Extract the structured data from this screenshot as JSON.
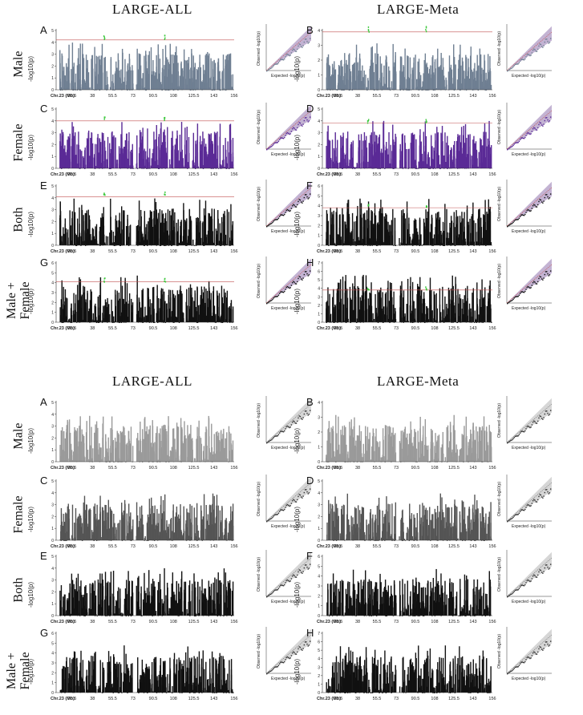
{
  "figure": {
    "column_titles": [
      "LARGE-ALL",
      "LARGE-Meta"
    ],
    "row_labels": [
      [
        "Male"
      ],
      [
        "Female"
      ],
      [
        "Both"
      ],
      [
        "Male +",
        "Female"
      ]
    ],
    "panel_letters": [
      "A",
      "B",
      "C",
      "D",
      "E",
      "F",
      "G",
      "H"
    ],
    "manhattan_ylabel": "-log10(p)",
    "qq_xlabel": "Expected -log10(p)",
    "qq_ylabel": "Observed -log10(p)",
    "x_ticks": [
      "Chr.23 (Mb)",
      "20.5",
      "38",
      "55.5",
      "73",
      "90.5",
      "108",
      "125.5",
      "143",
      "156"
    ],
    "colors": {
      "male": "#6f7f92",
      "female": "#5a2a96",
      "both": "#111111",
      "highlight": "#3ec83e",
      "threshold": "#c25050",
      "qq_band": "#b4a0c8",
      "gray_male": "#9a9a9a",
      "gray_female": "#555555"
    }
  },
  "chart_data": [
    {
      "type": "scatter",
      "panel": "A",
      "set": "color",
      "title": "",
      "series": [
        {
          "name": "Male",
          "group": "LARGE-ALL"
        }
      ],
      "ylim": [
        0,
        5
      ],
      "threshold": 4.2
    },
    {
      "type": "scatter",
      "panel": "B",
      "set": "color",
      "series": [
        {
          "name": "Male",
          "group": "LARGE-Meta"
        }
      ],
      "ylim": [
        0,
        4
      ],
      "threshold": 3.9
    },
    {
      "type": "scatter",
      "panel": "C",
      "set": "color",
      "series": [
        {
          "name": "Female",
          "group": "LARGE-ALL"
        }
      ],
      "ylim": [
        0,
        5
      ],
      "threshold": 4.0
    },
    {
      "type": "scatter",
      "panel": "D",
      "set": "color",
      "series": [
        {
          "name": "Female",
          "group": "LARGE-Meta"
        }
      ],
      "ylim": [
        0,
        5
      ],
      "threshold": 3.8
    },
    {
      "type": "scatter",
      "panel": "E",
      "set": "color",
      "series": [
        {
          "name": "Both",
          "group": "LARGE-ALL"
        }
      ],
      "ylim": [
        0,
        5
      ],
      "threshold": 4.1
    },
    {
      "type": "scatter",
      "panel": "F",
      "set": "color",
      "series": [
        {
          "name": "Both",
          "group": "LARGE-Meta"
        }
      ],
      "ylim": [
        0,
        6
      ],
      "threshold": 3.8
    },
    {
      "type": "scatter",
      "panel": "G",
      "set": "color",
      "series": [
        {
          "name": "Male + Female",
          "group": "LARGE-ALL"
        }
      ],
      "ylim": [
        0,
        6
      ],
      "threshold": 4.1
    },
    {
      "type": "scatter",
      "panel": "H",
      "set": "color",
      "series": [
        {
          "name": "Male + Female",
          "group": "LARGE-Meta"
        }
      ],
      "ylim": [
        0,
        7
      ],
      "threshold": 3.8
    },
    {
      "type": "scatter",
      "panel": "A",
      "set": "gray",
      "ylim": [
        0,
        5
      ]
    },
    {
      "type": "scatter",
      "panel": "B",
      "set": "gray",
      "ylim": [
        0,
        4
      ]
    },
    {
      "type": "scatter",
      "panel": "C",
      "set": "gray",
      "ylim": [
        0,
        5
      ]
    },
    {
      "type": "scatter",
      "panel": "D",
      "set": "gray",
      "ylim": [
        0,
        5
      ]
    },
    {
      "type": "scatter",
      "panel": "E",
      "set": "gray",
      "ylim": [
        0,
        5
      ]
    },
    {
      "type": "scatter",
      "panel": "F",
      "set": "gray",
      "ylim": [
        0,
        6
      ]
    },
    {
      "type": "scatter",
      "panel": "G",
      "set": "gray",
      "ylim": [
        0,
        6
      ]
    },
    {
      "type": "scatter",
      "panel": "H",
      "set": "gray",
      "ylim": [
        0,
        7
      ]
    }
  ]
}
